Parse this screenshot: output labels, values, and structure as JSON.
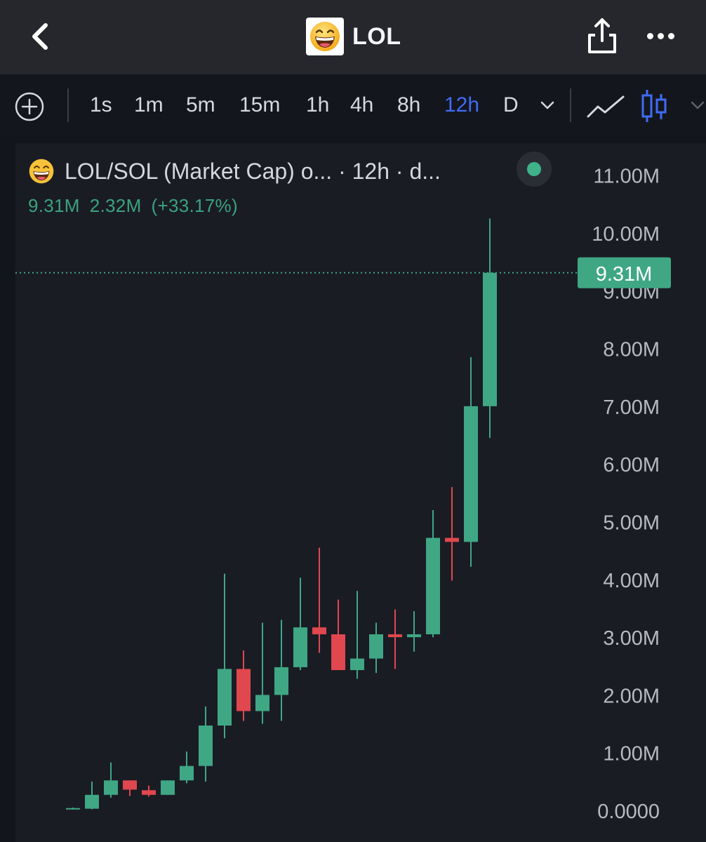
{
  "header": {
    "back_icon": "chevron-left-icon",
    "token_icon": "grinning-face-emoji",
    "title": "LOL",
    "share_icon": "share-icon",
    "more_icon": "more-dots-icon"
  },
  "toolbar": {
    "add_icon": "plus-circle-icon",
    "timeframes": [
      "1s",
      "1m",
      "5m",
      "15m",
      "1h",
      "4h",
      "8h",
      "12h",
      "D"
    ],
    "active_timeframe": "12h",
    "chart_type_icons": [
      "line-chart-icon",
      "candlestick-icon"
    ],
    "accent_color": "#3f6cf5"
  },
  "legend": {
    "title": "LOL/SOL (Market Cap) o...  · 12h · d...",
    "last": "9.31M",
    "change": "2.32M",
    "change_pct": "(+33.17%)",
    "status_color": "#3fb28a"
  },
  "chart_data": {
    "type": "candlestick",
    "title": "LOL/SOL (Market Cap)",
    "interval": "12h",
    "y_unit": "M",
    "ylim": [
      0,
      11.5
    ],
    "y_ticks": [
      "0.0000",
      "1.00M",
      "2.00M",
      "3.00M",
      "4.00M",
      "5.00M",
      "6.00M",
      "7.00M",
      "8.00M",
      "9.00M",
      "10.00M",
      "11.00M"
    ],
    "last_price_label": "9.31M",
    "last_price": 9.31,
    "up_color": "#3fa784",
    "down_color": "#e0474e",
    "candles": [
      {
        "o": 0.03,
        "h": 0.05,
        "l": 0.02,
        "c": 0.04
      },
      {
        "o": 0.03,
        "h": 0.5,
        "l": 0.02,
        "c": 0.27
      },
      {
        "o": 0.27,
        "h": 0.83,
        "l": 0.22,
        "c": 0.52
      },
      {
        "o": 0.52,
        "h": 0.52,
        "l": 0.25,
        "c": 0.36
      },
      {
        "o": 0.35,
        "h": 0.43,
        "l": 0.24,
        "c": 0.27
      },
      {
        "o": 0.27,
        "h": 0.52,
        "l": 0.27,
        "c": 0.52
      },
      {
        "o": 0.52,
        "h": 1.02,
        "l": 0.47,
        "c": 0.77
      },
      {
        "o": 0.77,
        "h": 1.8,
        "l": 0.5,
        "c": 1.47
      },
      {
        "o": 1.47,
        "h": 4.1,
        "l": 1.25,
        "c": 2.45
      },
      {
        "o": 2.45,
        "h": 2.77,
        "l": 1.55,
        "c": 1.72
      },
      {
        "o": 1.72,
        "h": 3.25,
        "l": 1.5,
        "c": 2.0
      },
      {
        "o": 2.0,
        "h": 3.3,
        "l": 1.55,
        "c": 2.48
      },
      {
        "o": 2.48,
        "h": 4.03,
        "l": 2.43,
        "c": 3.17
      },
      {
        "o": 3.17,
        "h": 4.55,
        "l": 2.73,
        "c": 3.05
      },
      {
        "o": 3.05,
        "h": 3.65,
        "l": 2.43,
        "c": 2.43
      },
      {
        "o": 2.43,
        "h": 3.8,
        "l": 2.28,
        "c": 2.63
      },
      {
        "o": 2.63,
        "h": 3.25,
        "l": 2.38,
        "c": 3.05
      },
      {
        "o": 3.05,
        "h": 3.48,
        "l": 2.45,
        "c": 3.0
      },
      {
        "o": 3.0,
        "h": 3.45,
        "l": 2.75,
        "c": 3.05
      },
      {
        "o": 3.05,
        "h": 5.2,
        "l": 3.0,
        "c": 4.72
      },
      {
        "o": 4.72,
        "h": 5.6,
        "l": 3.98,
        "c": 4.65
      },
      {
        "o": 4.65,
        "h": 7.85,
        "l": 4.22,
        "c": 7.0
      },
      {
        "o": 7.0,
        "h": 10.25,
        "l": 6.45,
        "c": 9.31
      }
    ]
  }
}
